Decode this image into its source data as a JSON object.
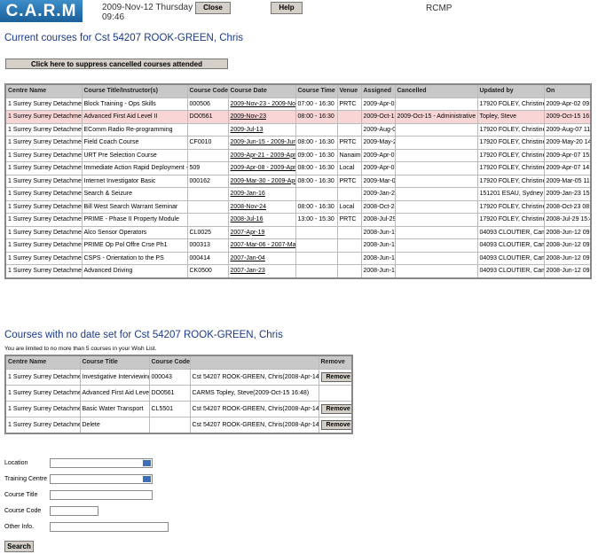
{
  "header": {
    "logo": "C.A.R.M",
    "date": "2009-Nov-12 Thursday",
    "time": "09:46",
    "close": "Close",
    "help": "Help",
    "org": "RCMP"
  },
  "current": {
    "heading": "Current courses for Cst 54207 ROOK-GREEN, Chris",
    "toggle": "Click here to suppress cancelled courses attended",
    "columns": [
      "Centre Name",
      "Course Title/Instructor(s)",
      "Course Code",
      "Course Date",
      "Course Time",
      "Venue",
      "Assigned",
      "Cancelled",
      "Updated by",
      "On"
    ],
    "rows": [
      {
        "centre": "1 Surrey Surrey Detachment",
        "title": "Block Training - Ops Skills",
        "code": "000506",
        "date": "2009-Nov-23 - 2009-Nov-27",
        "time": "07:00 - 16:30",
        "venue": "PRTC",
        "assigned": "2009-Apr-02",
        "updated_by": "17920 FOLEY, Christine",
        "on": "2009-Apr-02 09:05"
      },
      {
        "centre": "1 Surrey Surrey Detachment",
        "title": "Advanced First Aid Level II",
        "code": "DO0561",
        "date": "2009-Nov-23",
        "time": "08:00 - 16:30",
        "assigned": "2009-Oct-15",
        "cancelled": "2009-Oct-15 - Administrative Error",
        "updated_by": "Topley, Steve",
        "on": "2009-Oct-15 16:29"
      },
      {
        "centre": "1 Surrey Surrey Detachment",
        "title": "EComm Radio Re-programming",
        "date": "2009-Jul-13",
        "assigned": "2009-Aug-07",
        "updated_by": "17920 FOLEY, Christine",
        "on": "2009-Aug-07 11:09"
      },
      {
        "centre": "1 Surrey Surrey Detachment",
        "title": "Field Coach Course",
        "code": "CF0010",
        "date": "2009-Jun-15 - 2009-Jun-17",
        "time": "08:00 - 16:30",
        "venue": "PRTC",
        "assigned": "2009-May-20",
        "updated_by": "17920 FOLEY, Christine",
        "on": "2009-May-20 14:38"
      },
      {
        "centre": "1 Surrey Surrey Detachment",
        "title": "URT Pre Selection Course",
        "date": "2009-Apr-21 - 2009-Apr-23",
        "time": "09:00 - 16:30",
        "venue": "Nanaimo",
        "assigned": "2009-Apr-07",
        "updated_by": "17920 FOLEY, Christine",
        "on": "2009-Apr-07 15:19"
      },
      {
        "centre": "1 Surrey Surrey Detachment",
        "title": "Immediate Action Rapid Deployment - User",
        "code": "509",
        "date": "2009-Apr-08 - 2009-Apr-09",
        "time": "08:00 - 16:30",
        "venue": "Local",
        "assigned": "2009-Apr-07",
        "updated_by": "17920 FOLEY, Christine",
        "on": "2009-Apr-07 14:01"
      },
      {
        "centre": "1 Surrey Surrey Detachment",
        "title": "Internet Investigator Basic",
        "code": "000162",
        "date": "2009-Mar-30 - 2009-Apr-03",
        "time": "08:00 - 16:30",
        "venue": "PRTC",
        "assigned": "2009-Mar-05",
        "updated_by": "17920 FOLEY, Christine",
        "on": "2009-Mar-05 11:12"
      },
      {
        "centre": "1 Surrey Surrey Detachment",
        "title": "Search & Seizure",
        "date": "2009-Jan-16",
        "assigned": "2009-Jan-23",
        "updated_by": "151201 ESAU, Sydney",
        "on": "2009-Jan-23 15:33"
      },
      {
        "centre": "1 Surrey Surrey Detachment",
        "title": "Bill West Search Warrant Seminar",
        "date": "2008-Nov-24",
        "time": "08:00 - 16:30",
        "venue": "Local",
        "assigned": "2008-Oct-23",
        "updated_by": "17920 FOLEY, Christine",
        "on": "2008-Oct-23 08:38"
      },
      {
        "centre": "1 Surrey Surrey Detachment",
        "title": "PRIME - Phase II Property Module",
        "date": "2008-Jul-16",
        "time": "13:00 - 15:30",
        "venue": "PRTC",
        "assigned": "2008-Jul-29",
        "updated_by": "17920 FOLEY, Christine",
        "on": "2008-Jul-29 15:43"
      },
      {
        "centre": "1 Surrey Surrey Detachment",
        "title": "Alco Sensor Operators",
        "code": "CL0025",
        "date": "2007-Apr-19",
        "assigned": "2008-Jun-12",
        "updated_by": "04093 CLOUTIER, Camille",
        "on": "2008-Jun-12 09:16"
      },
      {
        "centre": "1 Surrey Surrey Detachment",
        "title": "PRIME Op Pol Offre Crse Ph1",
        "code": "000313",
        "date": "2007-Mar-06 - 2007-Mar-11",
        "assigned": "2008-Jun-12",
        "updated_by": "04093 CLOUTIER, Camille",
        "on": "2008-Jun-12 09:17"
      },
      {
        "centre": "1 Surrey Surrey Detachment",
        "title": "CSPS - Orientation to the PS",
        "code": "000414",
        "date": "2007-Jan-04",
        "assigned": "2008-Jun-12",
        "updated_by": "04093 CLOUTIER, Camille",
        "on": "2008-Jun-12 09:17"
      },
      {
        "centre": "1 Surrey Surrey Detachment",
        "title": "Advanced Driving",
        "code": "CK0500",
        "date": "2007-Jan-23",
        "assigned": "2008-Jun-12",
        "updated_by": "04093 CLOUTIER, Camille",
        "on": "2008-Jun-12 09:18"
      }
    ]
  },
  "nodate": {
    "heading": "Courses with no date set for Cst 54207 ROOK-GREEN, Chris",
    "note": "You are limited to no more than 5 courses in your Wish List.",
    "columns": [
      "Centre Name",
      "Course Title",
      "Course Code",
      "Remove"
    ],
    "rows": [
      {
        "centre": "1 Surrey Surrey Detachment",
        "title": "Investigative Interviewing",
        "code": "000043",
        "added": "Cst 54207 ROOK-GREEN, Chris(2008-Apr-14 20:20)",
        "remove": "Remove"
      },
      {
        "centre": "1 Surrey Surrey Detachment",
        "title": "Advanced First Aid Level II",
        "code": "DO0561",
        "added": "CARMS Topley, Steve(2009-Oct-15 16:48)"
      },
      {
        "centre": "1 Surrey Surrey Detachment",
        "title": "Basic Water Transport",
        "code": "CL5501",
        "added": "Cst 54207 ROOK-GREEN, Chris(2008-Apr-14 20:19)",
        "remove": "Remove"
      },
      {
        "centre": "1 Surrey Surrey Detachment",
        "title": "Delete",
        "added": "Cst 54207 ROOK-GREEN, Chris(2008-Apr-14 20:19)",
        "remove": "Remove"
      }
    ]
  },
  "form": {
    "fields": [
      {
        "label": "Location",
        "kind": "select"
      },
      {
        "label": "Training Centre",
        "kind": "select"
      },
      {
        "label": "Course Title",
        "kind": "text"
      },
      {
        "label": "Course Code",
        "kind": "short"
      },
      {
        "label": "Other Info.",
        "kind": "long"
      }
    ],
    "search": "Search"
  }
}
